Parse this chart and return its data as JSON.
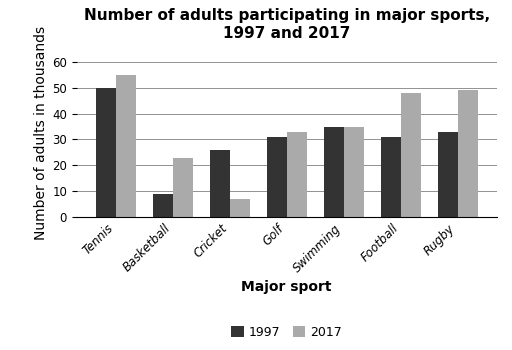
{
  "title": "Number of adults participating in major sports,\n1997 and 2017",
  "xlabel": "Major sport",
  "ylabel": "Number of adults in thousands",
  "categories": [
    "Tennis",
    "Basketball",
    "Cricket",
    "Golf",
    "Swimming",
    "Football",
    "Rugby"
  ],
  "values_1997": [
    50,
    9,
    26,
    31,
    35,
    31,
    33
  ],
  "values_2017": [
    55,
    23,
    7,
    33,
    35,
    48,
    49
  ],
  "color_1997": "#333333",
  "color_2017": "#aaaaaa",
  "legend_labels": [
    "1997",
    "2017"
  ],
  "ylim": [
    0,
    65
  ],
  "yticks": [
    0,
    10,
    20,
    30,
    40,
    50,
    60
  ],
  "bar_width": 0.35,
  "title_fontsize": 11,
  "axis_label_fontsize": 10,
  "tick_fontsize": 8.5,
  "legend_fontsize": 9
}
